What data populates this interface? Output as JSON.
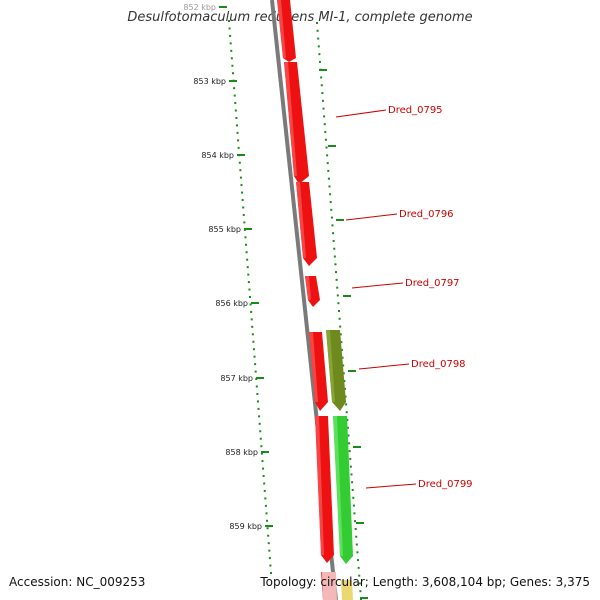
{
  "title": "Desulfotomaculum reducens MI-1, complete genome",
  "footer": {
    "accession": "Accession: NC_009253",
    "stats": "Topology: circular; Length: 3,608,104 bp; Genes: 3,375"
  },
  "colors": {
    "backbone": "#7a7a7a",
    "gene_red": "#ee1111",
    "gene_green": "#33cc33",
    "gene_olive": "#6e8a1e",
    "gene_pink": "#f5b8b8",
    "gene_yellow": "#ecd870",
    "scale_tick": "#1a8a1a",
    "label_color": "#cc0000"
  },
  "scale_ticks": [
    {
      "label": "852 kbp"
    },
    {
      "label": "853 kbp"
    },
    {
      "label": "854 kbp"
    },
    {
      "label": "855 kbp"
    },
    {
      "label": "856 kbp"
    },
    {
      "label": "857 kbp"
    },
    {
      "label": "858 kbp"
    },
    {
      "label": "859 kbp"
    }
  ],
  "gene_labels": [
    "Dred_0795",
    "Dred_0796",
    "Dred_0797",
    "Dred_0798",
    "Dred_0799"
  ]
}
